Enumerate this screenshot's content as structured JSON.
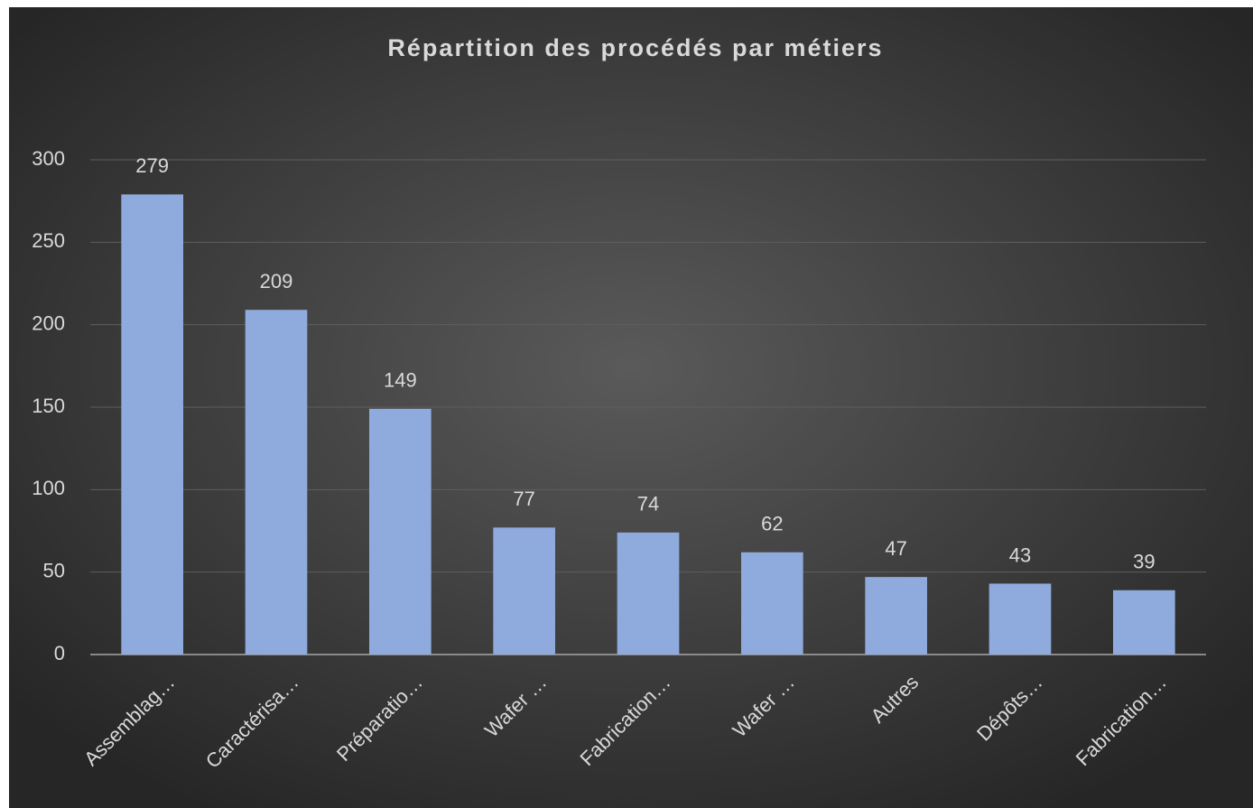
{
  "chart_data": {
    "type": "bar",
    "title": "Répartition des procédés par métiers",
    "categories": [
      "Assemblag…",
      "Caractérisa…",
      "Préparatio…",
      "Wafer …",
      "Fabrication…",
      "Wafer …",
      "Autres",
      "Dépôts…",
      "Fabrication…"
    ],
    "values": [
      279,
      209,
      149,
      77,
      74,
      62,
      47,
      43,
      39
    ],
    "color": "#8faadc",
    "ylim": [
      0,
      300
    ],
    "yticks": [
      0,
      50,
      100,
      150,
      200,
      250,
      300
    ],
    "grid": true
  }
}
